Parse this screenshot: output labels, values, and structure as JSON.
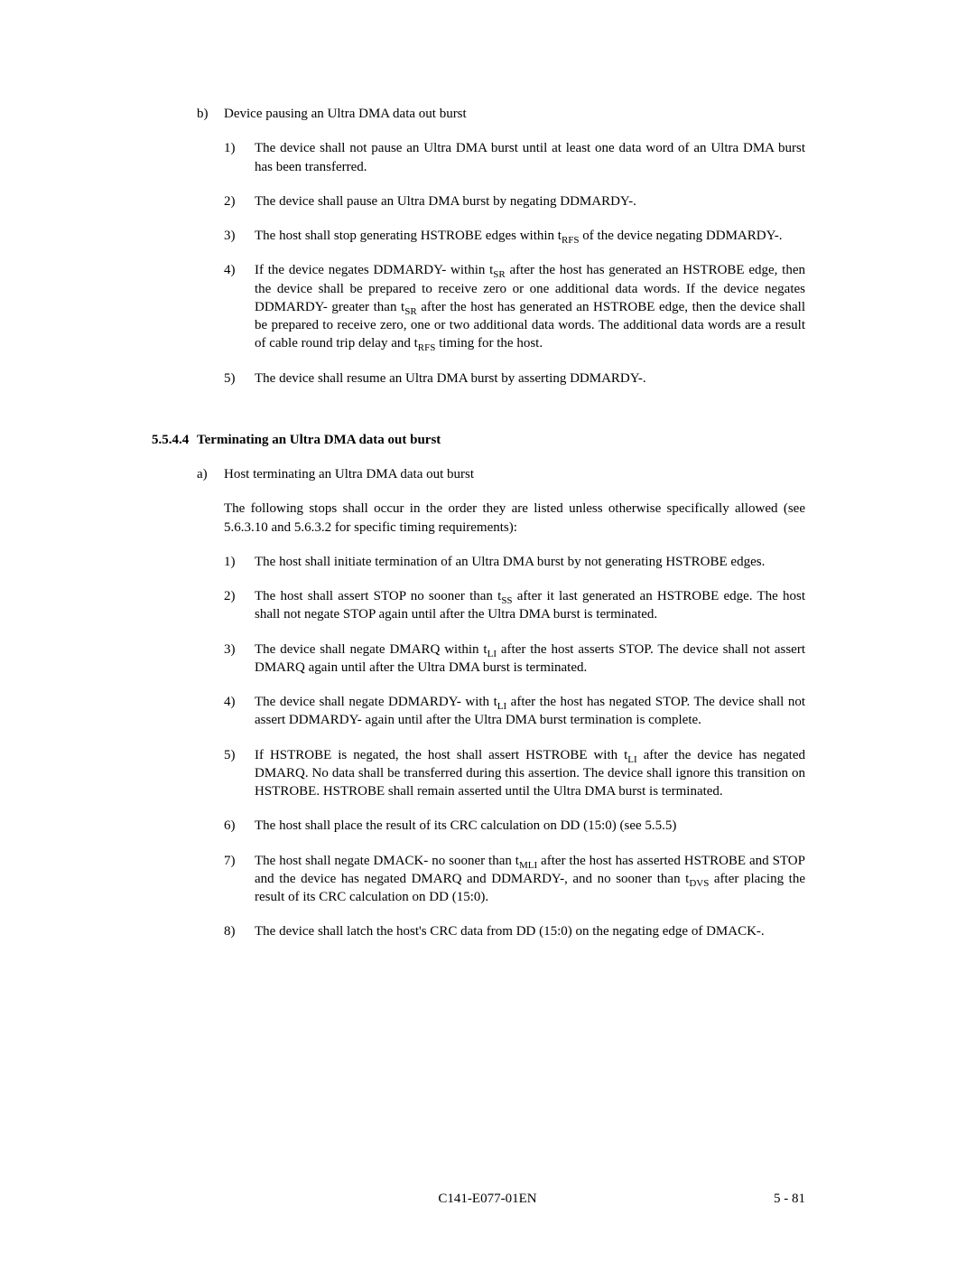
{
  "sectionB": {
    "label": "b)",
    "title": "Device pausing an Ultra DMA data out burst",
    "items": [
      {
        "n": "1)",
        "html": "The device shall not pause an Ultra DMA burst until at least one data word of an Ultra DMA burst has been transferred."
      },
      {
        "n": "2)",
        "html": "The device shall pause an Ultra DMA burst by negating DDMARDY-."
      },
      {
        "n": "3)",
        "html": "The host shall stop generating HSTROBE edges within t<sub>RFS</sub> of the device negating DDMARDY-."
      },
      {
        "n": "4)",
        "html": "If the device negates DDMARDY- within t<sub>SR</sub> after the host has generated an HSTROBE edge, then the device shall be prepared to receive zero or one additional data words.  If the device negates DDMARDY- greater than t<sub>SR</sub> after the host has generated an HSTROBE edge, then the device shall be prepared to receive zero, one or two additional data words.  The additional data words are a result of cable round trip delay and t<sub>RFS</sub> timing for the host."
      },
      {
        "n": "5)",
        "html": "The device shall resume an Ultra DMA burst by asserting DDMARDY-."
      }
    ]
  },
  "heading": {
    "num": "5.5.4.4",
    "title": "Terminating an Ultra DMA data out burst"
  },
  "sectionA": {
    "label": "a)",
    "title": "Host terminating an Ultra DMA data out burst",
    "intro": "The following stops shall occur in the order they are listed unless otherwise specifically allowed (see 5.6.3.10 and 5.6.3.2 for specific timing requirements):",
    "items": [
      {
        "n": "1)",
        "html": "The host shall initiate termination of an Ultra DMA burst by not generating HSTROBE edges."
      },
      {
        "n": "2)",
        "html": "The host shall assert STOP no sooner than t<sub>SS</sub> after it last generated an HSTROBE edge.  The host shall not negate STOP again until after the Ultra DMA burst is terminated."
      },
      {
        "n": "3)",
        "html": "The device shall negate DMARQ within t<sub>LI</sub> after the host asserts STOP.  The device shall not assert DMARQ again until after the Ultra DMA burst is terminated."
      },
      {
        "n": "4)",
        "html": "The device shall negate DDMARDY- with t<sub>LI</sub> after the host has negated STOP.  The device shall not assert DDMARDY- again until after the Ultra DMA burst termination is complete."
      },
      {
        "n": "5)",
        "html": "If HSTROBE is negated, the host shall assert HSTROBE with t<sub>LI</sub> after the device has negated DMARQ.  No data shall be transferred during this assertion.  The device shall ignore this transition on HSTROBE.  HSTROBE shall remain asserted until the Ultra DMA burst is terminated."
      },
      {
        "n": "6)",
        "html": "The host shall place the result of its CRC calculation on DD (15:0) (see 5.5.5)"
      },
      {
        "n": "7)",
        "html": "The host shall negate DMACK- no sooner than t<sub>MLI</sub> after the host has asserted HSTROBE and STOP and the device has negated DMARQ and DDMARDY-, and no sooner than t<sub>DVS</sub> after placing the result of its CRC calculation on DD (15:0)."
      },
      {
        "n": "8)",
        "html": "The device shall latch the host's CRC data from DD (15:0) on the negating edge of DMACK-."
      }
    ]
  },
  "footer": {
    "docId": "C141-E077-01EN",
    "pageNum": "5 - 81"
  }
}
